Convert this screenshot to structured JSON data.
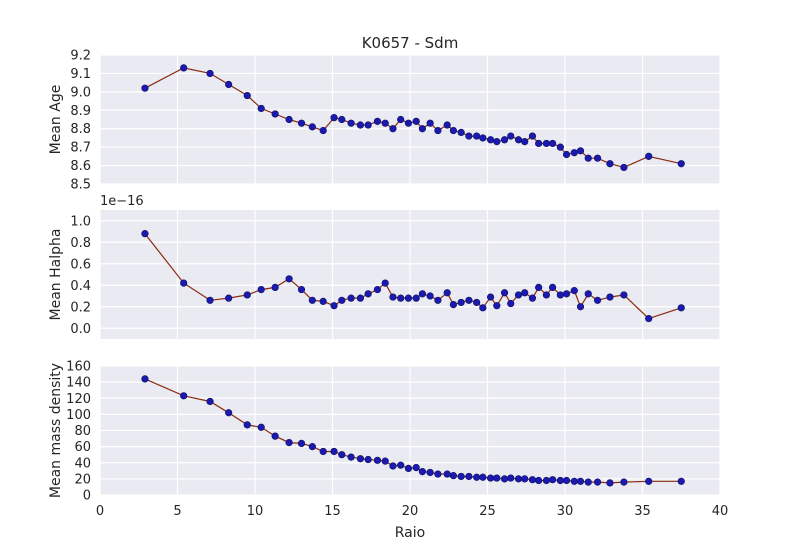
{
  "chart_data": [
    {
      "type": "line",
      "title": "K0657 - Sdm",
      "xlabel": "",
      "ylabel": "Mean Age",
      "xlim": [
        0,
        40
      ],
      "ylim": [
        8.5,
        9.2
      ],
      "yticks": [
        8.5,
        8.6,
        8.7,
        8.8,
        8.9,
        9.0,
        9.1,
        9.2
      ],
      "ytick_labels": [
        "8.5",
        "8.6",
        "8.7",
        "8.8",
        "8.9",
        "9.0",
        "9.1",
        "9.2"
      ],
      "offset_text": "",
      "x": [
        2.9,
        5.4,
        7.1,
        8.3,
        9.5,
        10.4,
        11.3,
        12.2,
        13.0,
        13.7,
        14.4,
        15.1,
        15.6,
        16.2,
        16.8,
        17.3,
        17.9,
        18.4,
        18.9,
        19.4,
        19.9,
        20.4,
        20.8,
        21.3,
        21.8,
        22.4,
        22.8,
        23.3,
        23.8,
        24.3,
        24.7,
        25.2,
        25.6,
        26.1,
        26.5,
        27.0,
        27.4,
        27.9,
        28.3,
        28.8,
        29.2,
        29.7,
        30.1,
        30.6,
        31.0,
        31.5,
        32.1,
        32.9,
        33.8,
        35.4,
        37.5
      ],
      "series": [
        {
          "name": "",
          "values": [
            9.02,
            9.13,
            9.1,
            9.04,
            8.98,
            8.91,
            8.88,
            8.85,
            8.83,
            8.81,
            8.79,
            8.86,
            8.85,
            8.83,
            8.82,
            8.82,
            8.84,
            8.83,
            8.8,
            8.85,
            8.83,
            8.84,
            8.8,
            8.83,
            8.79,
            8.82,
            8.79,
            8.78,
            8.76,
            8.76,
            8.75,
            8.74,
            8.73,
            8.74,
            8.76,
            8.74,
            8.73,
            8.76,
            8.72,
            8.72,
            8.72,
            8.7,
            8.66,
            8.67,
            8.68,
            8.64,
            8.64,
            8.61,
            8.59,
            8.65,
            8.61
          ],
          "line_color": "#8b2b0e",
          "marker_color": "#1a1ab0"
        }
      ]
    },
    {
      "type": "line",
      "title": "",
      "xlabel": "",
      "ylabel": "Mean Halpha",
      "xlim": [
        0,
        40
      ],
      "ylim": [
        -0.1,
        1.1
      ],
      "yticks": [
        0.0,
        0.2,
        0.4,
        0.6,
        0.8,
        1.0
      ],
      "ytick_labels": [
        "0.0",
        "0.2",
        "0.4",
        "0.6",
        "0.8",
        "1.0"
      ],
      "offset_text": "1e−16",
      "x": [
        2.9,
        5.4,
        7.1,
        8.3,
        9.5,
        10.4,
        11.3,
        12.2,
        13.0,
        13.7,
        14.4,
        15.1,
        15.6,
        16.2,
        16.8,
        17.3,
        17.9,
        18.4,
        18.9,
        19.4,
        19.9,
        20.4,
        20.8,
        21.3,
        21.8,
        22.4,
        22.8,
        23.3,
        23.8,
        24.3,
        24.7,
        25.2,
        25.6,
        26.1,
        26.5,
        27.0,
        27.4,
        27.9,
        28.3,
        28.8,
        29.2,
        29.7,
        30.1,
        30.6,
        31.0,
        31.5,
        32.1,
        32.9,
        33.8,
        35.4,
        37.5
      ],
      "series": [
        {
          "name": "",
          "values": [
            0.88,
            0.42,
            0.26,
            0.28,
            0.31,
            0.36,
            0.38,
            0.46,
            0.36,
            0.26,
            0.25,
            0.21,
            0.26,
            0.28,
            0.28,
            0.32,
            0.36,
            0.42,
            0.29,
            0.28,
            0.28,
            0.28,
            0.32,
            0.3,
            0.26,
            0.33,
            0.22,
            0.24,
            0.26,
            0.24,
            0.19,
            0.29,
            0.21,
            0.33,
            0.23,
            0.31,
            0.33,
            0.28,
            0.38,
            0.31,
            0.38,
            0.31,
            0.32,
            0.35,
            0.2,
            0.32,
            0.26,
            0.29,
            0.31,
            0.09,
            0.19
          ],
          "line_color": "#8b2b0e",
          "marker_color": "#1a1ab0"
        }
      ]
    },
    {
      "type": "line",
      "title": "",
      "xlabel": "Raio",
      "ylabel": "Mean mass density",
      "xlim": [
        0,
        40
      ],
      "ylim": [
        0,
        160
      ],
      "yticks": [
        0,
        20,
        40,
        60,
        80,
        100,
        120,
        140,
        160
      ],
      "ytick_labels": [
        "0",
        "20",
        "40",
        "60",
        "80",
        "100",
        "120",
        "140",
        "160"
      ],
      "xticks": [
        0,
        5,
        10,
        15,
        20,
        25,
        30,
        35,
        40
      ],
      "xtick_labels": [
        "0",
        "5",
        "10",
        "15",
        "20",
        "25",
        "30",
        "35",
        "40"
      ],
      "offset_text": "",
      "x": [
        2.9,
        5.4,
        7.1,
        8.3,
        9.5,
        10.4,
        11.3,
        12.2,
        13.0,
        13.7,
        14.4,
        15.1,
        15.6,
        16.2,
        16.8,
        17.3,
        17.9,
        18.4,
        18.9,
        19.4,
        19.9,
        20.4,
        20.8,
        21.3,
        21.8,
        22.4,
        22.8,
        23.3,
        23.8,
        24.3,
        24.7,
        25.2,
        25.6,
        26.1,
        26.5,
        27.0,
        27.4,
        27.9,
        28.3,
        28.8,
        29.2,
        29.7,
        30.1,
        30.6,
        31.0,
        31.5,
        32.1,
        32.9,
        33.8,
        35.4,
        37.5
      ],
      "series": [
        {
          "name": "",
          "values": [
            144,
            123,
            116,
            102,
            87,
            84,
            73,
            65,
            64,
            60,
            54,
            54,
            50,
            47,
            45,
            44,
            43,
            42,
            36,
            37,
            33,
            34,
            29,
            28,
            26,
            26,
            24,
            23,
            23,
            22,
            22,
            21,
            21,
            20,
            21,
            20,
            20,
            19,
            18,
            18,
            19,
            18,
            18,
            17,
            17,
            16,
            16,
            15,
            16,
            17,
            17
          ],
          "line_color": "#8b2b0e",
          "marker_color": "#1a1ab0"
        }
      ]
    }
  ],
  "style": {
    "plot_bg": "#eaeaf2",
    "grid_color": "#ffffff",
    "text_color": "#262626"
  }
}
